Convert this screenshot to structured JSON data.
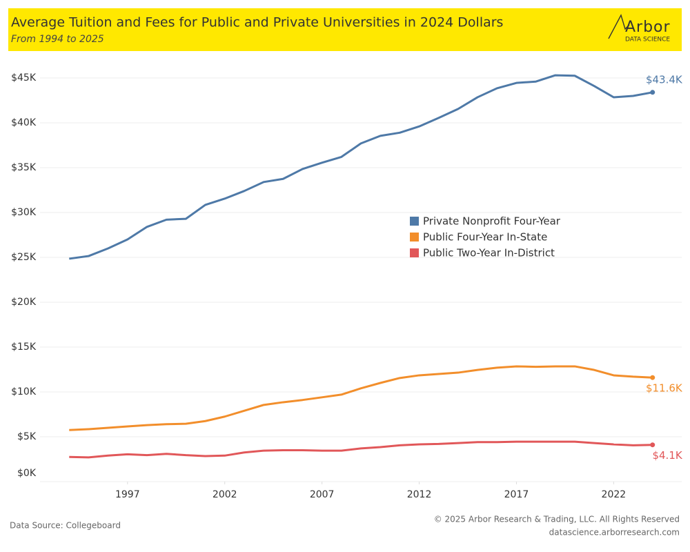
{
  "chart_data": {
    "type": "line",
    "title": "Average Tuition and Fees for Public and Private Universities in 2024 Dollars",
    "subtitle": "From 1994 to 2025",
    "logo": {
      "name": "Arbor",
      "tagline": "DATA SCIENCE"
    },
    "source": "Data Source: Collegeboard",
    "copyright": "© 2025 Arbor Research & Trading, LLC. All Rights Reserved",
    "website": "datascience.arborresearch.com",
    "x": [
      1994,
      1995,
      1996,
      1997,
      1998,
      1999,
      2000,
      2001,
      2002,
      2003,
      2004,
      2005,
      2006,
      2007,
      2008,
      2009,
      2010,
      2011,
      2012,
      2013,
      2014,
      2015,
      2016,
      2017,
      2018,
      2019,
      2020,
      2021,
      2022,
      2023,
      2024
    ],
    "xlim": [
      1992.5,
      2025.5
    ],
    "xticks": [
      1997,
      2002,
      2007,
      2012,
      2017,
      2022
    ],
    "ylim": [
      0,
      47000
    ],
    "yticks": [
      {
        "value": 0,
        "label": "$0K"
      },
      {
        "value": 5000,
        "label": "$5K"
      },
      {
        "value": 10000,
        "label": "$10K"
      },
      {
        "value": 15000,
        "label": "$15K"
      },
      {
        "value": 20000,
        "label": "$20K"
      },
      {
        "value": 25000,
        "label": "$25K"
      },
      {
        "value": 30000,
        "label": "$30K"
      },
      {
        "value": 35000,
        "label": "$35K"
      },
      {
        "value": 40000,
        "label": "$40K"
      },
      {
        "value": 45000,
        "label": "$45K"
      }
    ],
    "grid": true,
    "legend": "center-right",
    "series": [
      {
        "name": "Private Nonprofit Four-Year",
        "color": "#4e79a7",
        "values": [
          24850,
          25150,
          26000,
          27000,
          28400,
          29200,
          29300,
          30850,
          31550,
          32400,
          33400,
          33750,
          34850,
          35550,
          36200,
          37700,
          38550,
          38900,
          39600,
          40550,
          41550,
          42850,
          43850,
          44450,
          44600,
          45300,
          45250,
          44100,
          42850,
          43000,
          43400
        ],
        "value_labels": [
          null,
          null,
          null,
          null,
          null,
          null,
          null,
          null,
          null,
          null,
          null,
          null,
          null,
          null,
          null,
          null,
          null,
          null,
          null,
          null,
          null,
          null,
          null,
          null,
          null,
          null,
          null,
          null,
          null,
          null,
          "$43.4K"
        ]
      },
      {
        "name": "Public Four-Year In-State",
        "color": "#f28e2b",
        "values": [
          5750,
          5850,
          6000,
          6150,
          6300,
          6400,
          6450,
          6750,
          7250,
          7900,
          8550,
          8850,
          9100,
          9400,
          9700,
          10400,
          11000,
          11550,
          11850,
          12000,
          12150,
          12450,
          12700,
          12850,
          12800,
          12850,
          12850,
          12450,
          11850,
          11700,
          11600
        ],
        "value_labels": [
          null,
          null,
          null,
          null,
          null,
          null,
          null,
          null,
          null,
          null,
          null,
          null,
          null,
          null,
          null,
          null,
          null,
          null,
          null,
          null,
          null,
          null,
          null,
          null,
          null,
          null,
          null,
          null,
          null,
          null,
          "$11.6K"
        ]
      },
      {
        "name": "Public Two-Year In-District",
        "color": "#e15759",
        "values": [
          2750,
          2700,
          2900,
          3050,
          2950,
          3100,
          2950,
          2850,
          2900,
          3250,
          3450,
          3500,
          3500,
          3450,
          3450,
          3700,
          3850,
          4050,
          4150,
          4200,
          4300,
          4400,
          4400,
          4450,
          4450,
          4450,
          4450,
          4300,
          4150,
          4050,
          4100
        ],
        "value_labels": [
          null,
          null,
          null,
          null,
          null,
          null,
          null,
          null,
          null,
          null,
          null,
          null,
          null,
          null,
          null,
          null,
          null,
          null,
          null,
          null,
          null,
          null,
          null,
          null,
          null,
          null,
          null,
          null,
          null,
          null,
          "$4.1K"
        ]
      }
    ]
  }
}
